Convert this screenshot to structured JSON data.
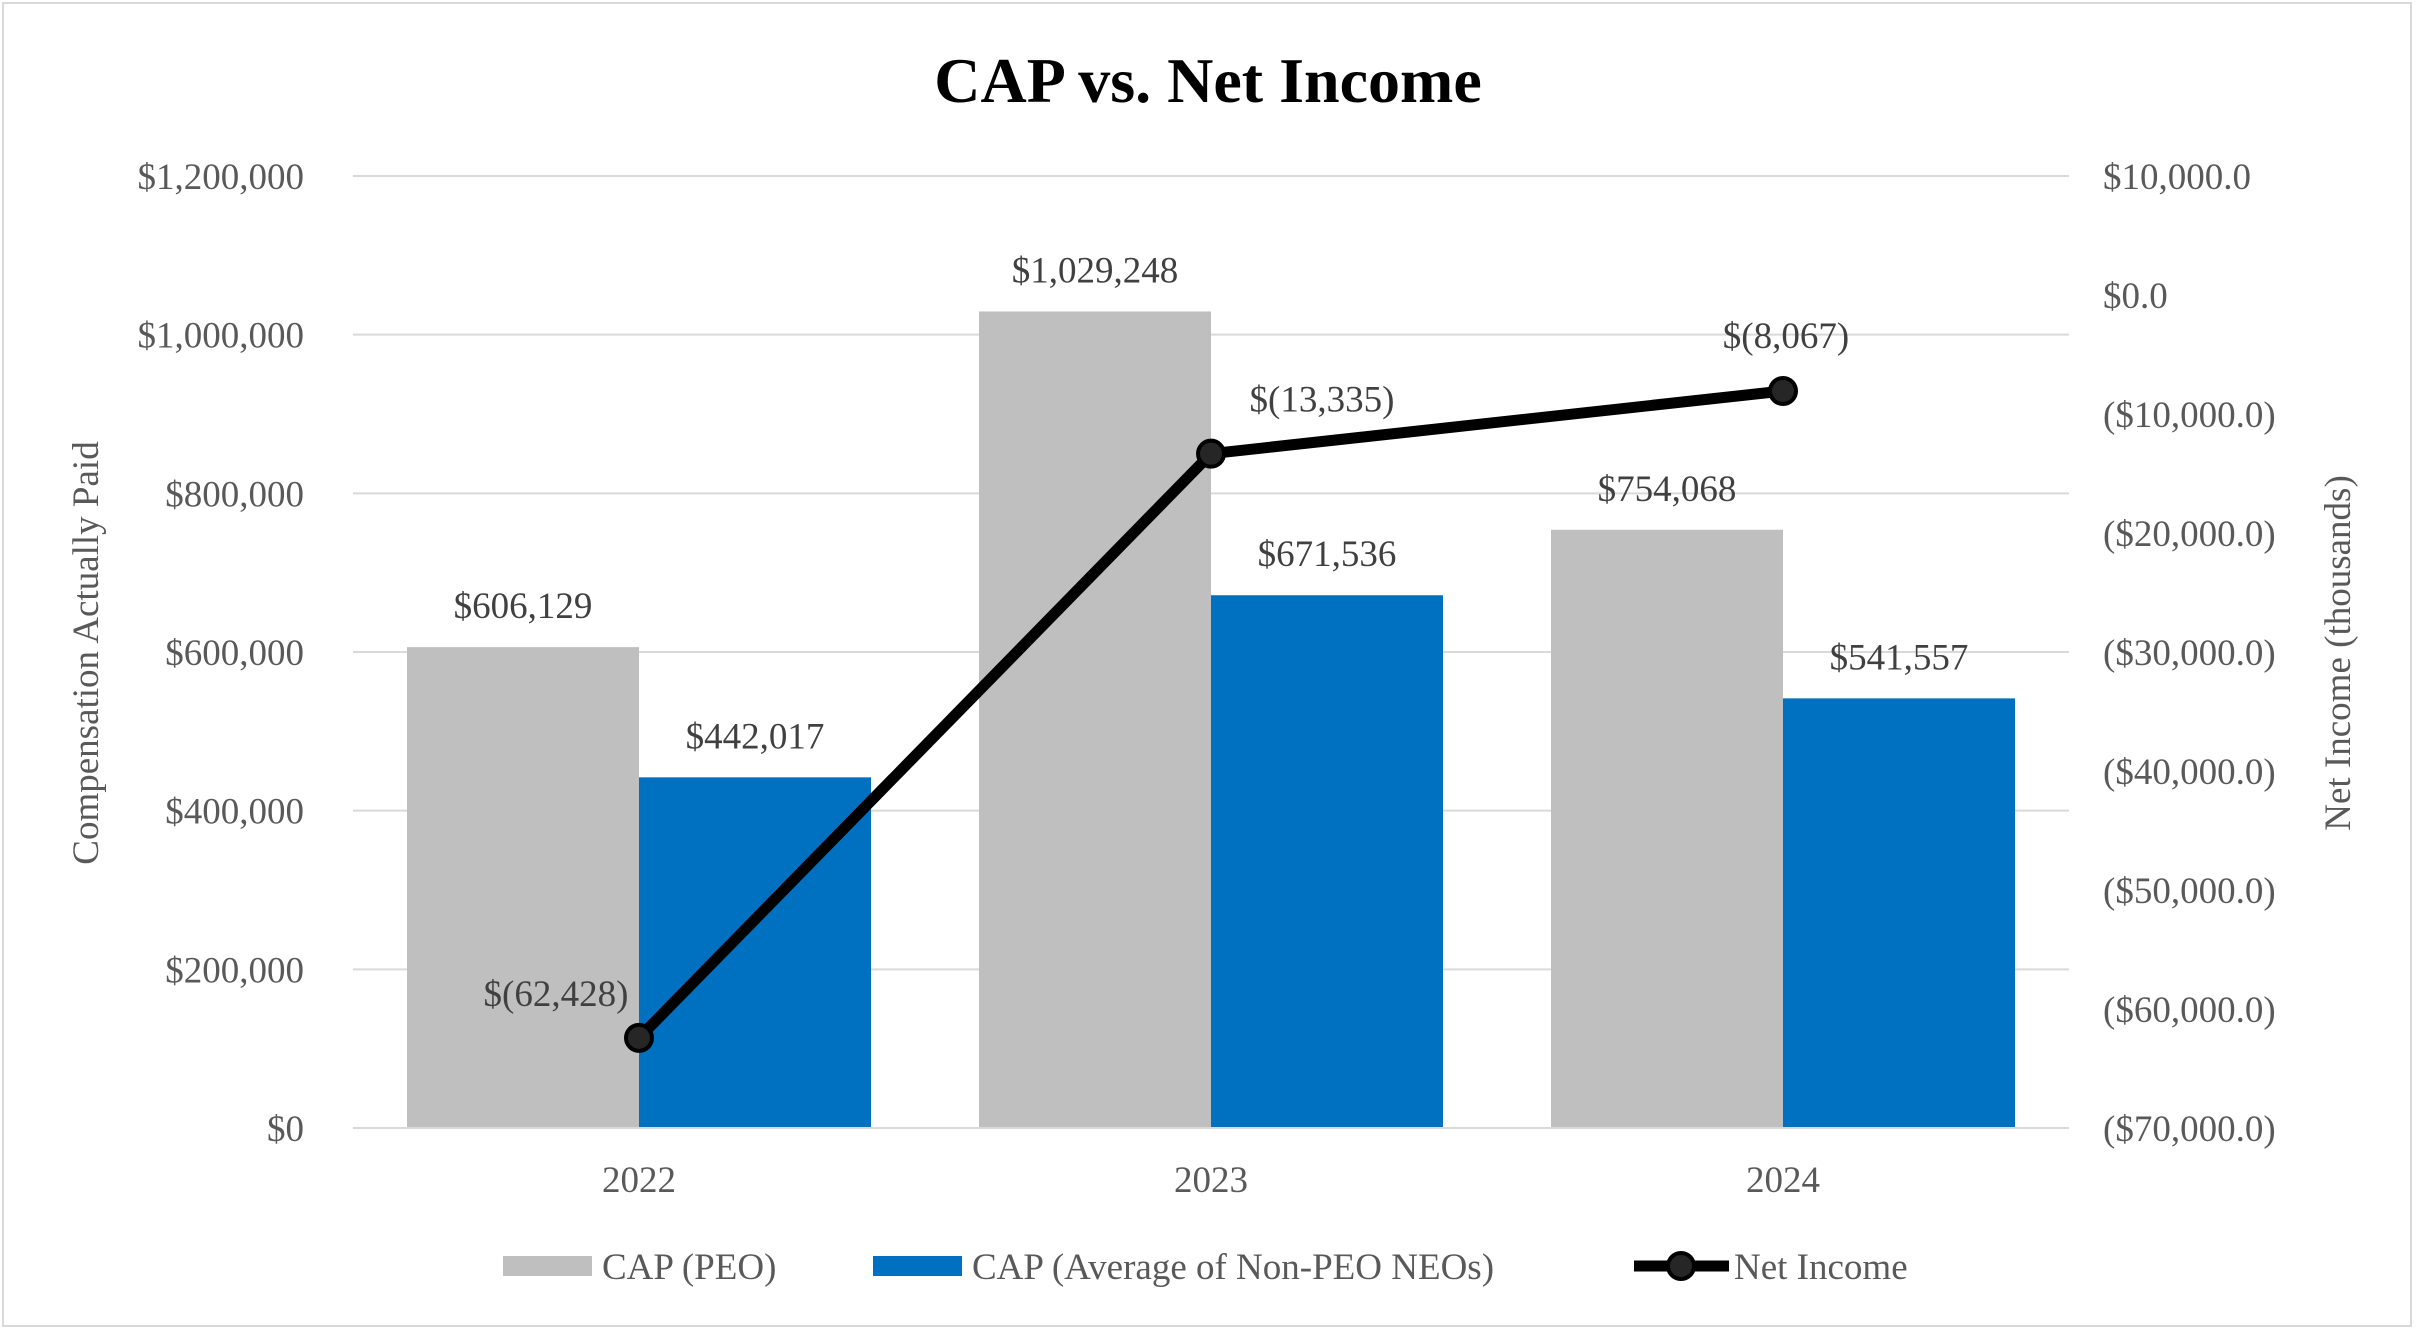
{
  "chart_data": {
    "type": "bar",
    "title": "CAP vs. Net Income",
    "categories": [
      "2022",
      "2023",
      "2024"
    ],
    "ylabel": "Compensation Actually Paid",
    "y2label": "Net Income (thousands)",
    "ylim": [
      0,
      1200000
    ],
    "y2lim": [
      -70000,
      10000
    ],
    "yticks": [
      0,
      200000,
      400000,
      600000,
      800000,
      1000000,
      1200000
    ],
    "ytick_labels": [
      "$0",
      "$200,000",
      "$400,000",
      "$600,000",
      "$800,000",
      "$1,000,000",
      "$1,200,000"
    ],
    "y2ticks": [
      -70000,
      -60000,
      -50000,
      -40000,
      -30000,
      -20000,
      -10000,
      0,
      10000
    ],
    "y2tick_labels": [
      "($70,000.0)",
      "($60,000.0)",
      "($50,000.0)",
      "($40,000.0)",
      "($30,000.0)",
      "($20,000.0)",
      "($10,000.0)",
      "$0.0",
      "$10,000.0"
    ],
    "grid": true,
    "legend_position": "bottom",
    "series": [
      {
        "name": "CAP (PEO)",
        "kind": "bar",
        "axis": "left",
        "color": "#bfbfbf",
        "values": [
          606129,
          1029248,
          754068
        ],
        "labels": [
          "$606,129",
          "$1,029,248",
          "$754,068"
        ]
      },
      {
        "name": "CAP (Average of Non-PEO NEOs)",
        "kind": "bar",
        "axis": "left",
        "color": "#0070c0",
        "values": [
          442017,
          671536,
          541557
        ],
        "labels": [
          "$442,017",
          "$671,536",
          "$541,557"
        ]
      },
      {
        "name": "Net Income",
        "kind": "line",
        "axis": "right",
        "color": "#000000",
        "values": [
          -62428,
          -13335,
          -8067
        ],
        "labels": [
          "$(62,428)",
          "$(13,335)",
          "$(8,067)"
        ]
      }
    ]
  }
}
